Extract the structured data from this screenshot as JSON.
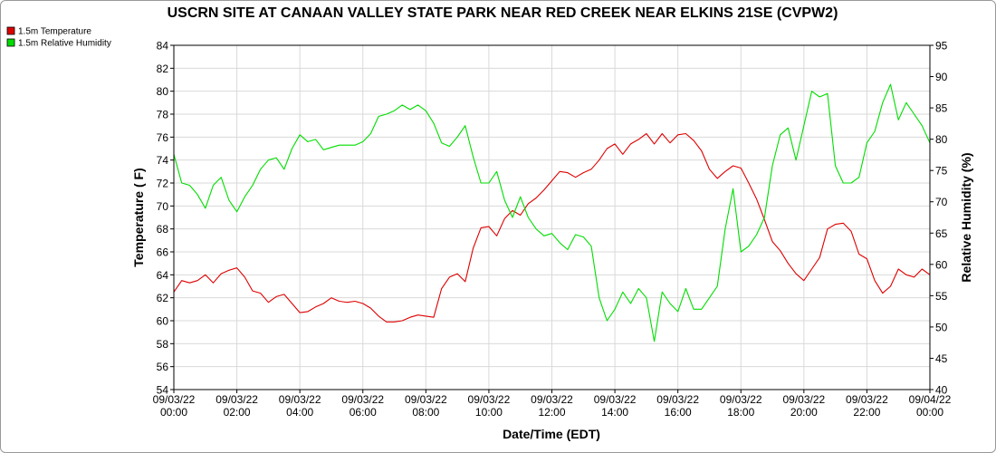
{
  "chart_data": {
    "type": "line",
    "title": "USCRN SITE AT CANAAN VALLEY STATE PARK NEAR RED CREEK NEAR ELKINS 21SE (CVPW2)",
    "xlabel": "Date/Time (EDT)",
    "ylabel_left": "Temperature ( F)",
    "ylabel_right": "Relative Humidity (%)",
    "ylim_left": [
      54,
      84
    ],
    "ylim_right": [
      40,
      95
    ],
    "xlim_hours": [
      0,
      24
    ],
    "legend_position": "top-left",
    "grid": true,
    "x_ticks": [
      {
        "h": 0,
        "date": "09/03/22",
        "time": "00:00"
      },
      {
        "h": 2,
        "date": "09/03/22",
        "time": "02:00"
      },
      {
        "h": 4,
        "date": "09/03/22",
        "time": "04:00"
      },
      {
        "h": 6,
        "date": "09/03/22",
        "time": "06:00"
      },
      {
        "h": 8,
        "date": "09/03/22",
        "time": "08:00"
      },
      {
        "h": 10,
        "date": "09/03/22",
        "time": "10:00"
      },
      {
        "h": 12,
        "date": "09/03/22",
        "time": "12:00"
      },
      {
        "h": 14,
        "date": "09/03/22",
        "time": "14:00"
      },
      {
        "h": 16,
        "date": "09/03/22",
        "time": "16:00"
      },
      {
        "h": 18,
        "date": "09/03/22",
        "time": "18:00"
      },
      {
        "h": 20,
        "date": "09/03/22",
        "time": "20:00"
      },
      {
        "h": 22,
        "date": "09/03/22",
        "time": "22:00"
      },
      {
        "h": 24,
        "date": "09/04/22",
        "time": "00:00"
      }
    ],
    "y_ticks_left": [
      54,
      56,
      58,
      60,
      62,
      64,
      66,
      68,
      70,
      72,
      74,
      76,
      78,
      80,
      82,
      84
    ],
    "y_ticks_right": [
      40,
      45,
      50,
      55,
      60,
      65,
      70,
      75,
      80,
      85,
      90,
      95
    ],
    "series": [
      {
        "name": "1.5m Temperature",
        "color": "#dd0000",
        "axis": "left",
        "x": [
          0,
          0.25,
          0.5,
          0.75,
          1,
          1.25,
          1.5,
          1.75,
          2,
          2.25,
          2.5,
          2.75,
          3,
          3.25,
          3.5,
          3.75,
          4,
          4.25,
          4.5,
          4.75,
          5,
          5.25,
          5.5,
          5.75,
          6,
          6.25,
          6.5,
          6.75,
          7,
          7.25,
          7.5,
          7.75,
          8,
          8.25,
          8.5,
          8.75,
          9,
          9.25,
          9.5,
          9.75,
          10,
          10.25,
          10.5,
          10.75,
          11,
          11.25,
          11.5,
          11.75,
          12,
          12.25,
          12.5,
          12.75,
          13,
          13.25,
          13.5,
          13.75,
          14,
          14.25,
          14.5,
          14.75,
          15,
          15.25,
          15.5,
          15.75,
          16,
          16.25,
          16.5,
          16.75,
          17,
          17.25,
          17.5,
          17.75,
          18,
          18.25,
          18.5,
          18.75,
          19,
          19.25,
          19.5,
          19.75,
          20,
          20.25,
          20.5,
          20.75,
          21,
          21.25,
          21.5,
          21.75,
          22,
          22.25,
          22.5,
          22.75,
          23,
          23.25,
          23.5,
          23.75,
          24
        ],
        "values": [
          62.5,
          63.5,
          63.3,
          63.5,
          64.0,
          63.3,
          64.1,
          64.4,
          64.6,
          63.8,
          62.6,
          62.4,
          61.6,
          62.1,
          62.3,
          61.5,
          60.7,
          60.8,
          61.2,
          61.5,
          62.0,
          61.7,
          61.6,
          61.7,
          61.5,
          61.1,
          60.4,
          59.9,
          59.9,
          60.0,
          60.3,
          60.5,
          60.4,
          60.3,
          62.8,
          63.8,
          64.1,
          63.4,
          66.3,
          68.1,
          68.2,
          67.4,
          68.9,
          69.6,
          69.2,
          70.2,
          70.7,
          71.4,
          72.2,
          73.0,
          72.9,
          72.5,
          72.9,
          73.2,
          74.0,
          75.0,
          75.4,
          74.5,
          75.4,
          75.8,
          76.3,
          75.4,
          76.3,
          75.5,
          76.2,
          76.3,
          75.7,
          74.8,
          73.2,
          72.4,
          73.0,
          73.5,
          73.3,
          72.0,
          70.6,
          68.8,
          66.9,
          66.1,
          65.0,
          64.1,
          63.5,
          64.5,
          65.5,
          68.0,
          68.4,
          68.5,
          67.8,
          65.8,
          65.4,
          63.5,
          62.4,
          63.0,
          64.5,
          64.0,
          63.8,
          64.5,
          64.0
        ]
      },
      {
        "name": "1.5m Relative Humidity",
        "color": "#00dd00",
        "axis": "left",
        "x": [
          0,
          0.25,
          0.5,
          0.75,
          1,
          1.25,
          1.5,
          1.75,
          2,
          2.25,
          2.5,
          2.75,
          3,
          3.25,
          3.5,
          3.75,
          4,
          4.25,
          4.5,
          4.75,
          5,
          5.25,
          5.5,
          5.75,
          6,
          6.25,
          6.5,
          6.75,
          7,
          7.25,
          7.5,
          7.75,
          8,
          8.25,
          8.5,
          8.75,
          9,
          9.25,
          9.5,
          9.75,
          10,
          10.25,
          10.5,
          10.75,
          11,
          11.25,
          11.5,
          11.75,
          12,
          12.25,
          12.5,
          12.75,
          13,
          13.25,
          13.5,
          13.75,
          14,
          14.25,
          14.5,
          14.75,
          15,
          15.25,
          15.5,
          15.75,
          16,
          16.25,
          16.5,
          16.75,
          17,
          17.25,
          17.5,
          17.75,
          18,
          18.25,
          18.5,
          18.75,
          19,
          19.25,
          19.5,
          19.75,
          20,
          20.25,
          20.5,
          20.75,
          21,
          21.25,
          21.5,
          21.75,
          22,
          22.25,
          22.5,
          22.75,
          23,
          23.25,
          23.5,
          23.75,
          24
        ],
        "values": [
          74.5,
          72.0,
          71.8,
          71.0,
          69.8,
          71.8,
          72.5,
          70.5,
          69.5,
          70.8,
          71.8,
          73.2,
          74.0,
          74.2,
          73.2,
          75.0,
          76.2,
          75.6,
          75.8,
          74.9,
          75.1,
          75.3,
          75.3,
          75.3,
          75.6,
          76.3,
          77.8,
          78.0,
          78.3,
          78.8,
          78.4,
          78.8,
          78.3,
          77.2,
          75.5,
          75.2,
          76.0,
          77.0,
          74.3,
          72.0,
          72.0,
          73.0,
          70.5,
          69.0,
          70.8,
          69.0,
          68.0,
          67.4,
          67.6,
          66.8,
          66.2,
          67.5,
          67.3,
          66.5,
          62.0,
          60.0,
          61.0,
          62.5,
          61.5,
          62.8,
          62.0,
          58.2,
          62.5,
          61.5,
          60.8,
          62.8,
          61.0,
          61.0,
          62.0,
          63.0,
          68.0,
          71.5,
          66.0,
          66.5,
          67.5,
          69.0,
          73.5,
          76.2,
          76.8,
          74.0,
          77.0,
          80.0,
          79.5,
          79.8,
          73.5,
          72.0,
          72.0,
          72.5,
          75.5,
          76.5,
          79.0,
          80.6,
          77.5,
          79.0,
          78.0,
          77.0,
          75.5
        ]
      }
    ],
    "legend": [
      {
        "label": "1.5m Temperature",
        "color": "#dd0000"
      },
      {
        "label": "1.5m Relative Humidity",
        "color": "#00dd00"
      }
    ]
  }
}
